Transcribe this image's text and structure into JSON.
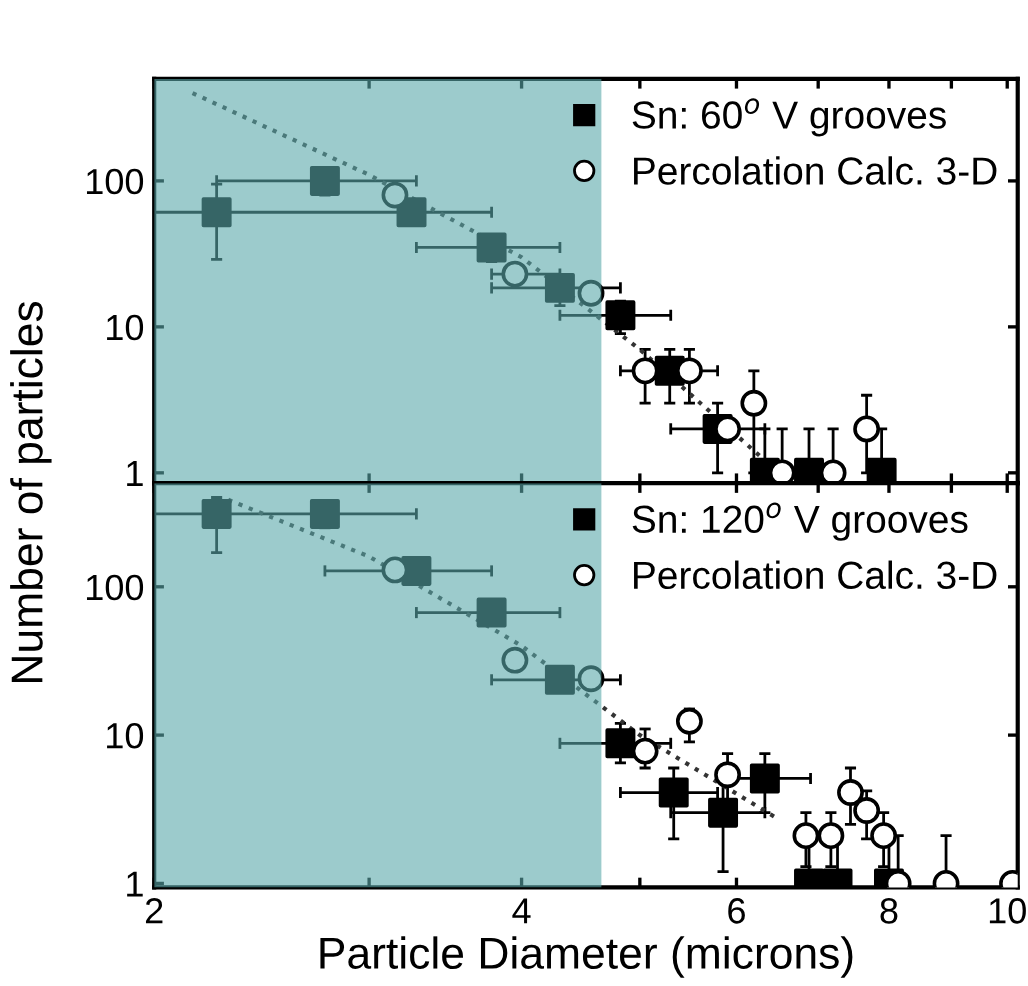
{
  "chart_data": [
    {
      "type": "scatter",
      "ylabel": "Number of particles",
      "log": "xy",
      "xlim": [
        2,
        10.2
      ],
      "ylim": [
        0.85,
        500
      ],
      "xticks": [
        2,
        {
          "value": 3,
          "label": null
        },
        4,
        {
          "value": 5,
          "label": null
        },
        6,
        {
          "value": 7,
          "label": null
        },
        8,
        {
          "value": 9,
          "label": null
        },
        10
      ],
      "yticks": [
        1,
        10,
        100
      ],
      "tick_labels": "y",
      "legend": "top right",
      "grid": false,
      "bands": [
        {
          "axis": "x",
          "from": 2,
          "to": 4.65,
          "color": "#5aa9aa"
        }
      ],
      "series": [
        {
          "name": "Sn: 60$^{o}$ V grooves",
          "color": "#000000",
          "marker": "square",
          "x": [
            2.25,
            2.76,
            3.25,
            3.78,
            4.3,
            4.82,
            5.29,
            5.79,
            6.33,
            6.88,
            7.89
          ],
          "values": [
            61,
            100,
            61,
            35,
            18.5,
            12,
            5,
            2,
            1,
            1,
            1
          ],
          "errors": [
            [
              29,
              95
            ],
            [
              80,
              120
            ],
            [
              50,
              72
            ],
            [
              28,
              42
            ],
            [
              14,
              22
            ],
            [
              9,
              15
            ],
            [
              3,
              7
            ],
            [
              1,
              3
            ],
            [
              1,
              2
            ],
            [
              1,
              2
            ],
            [
              1,
              2
            ]
          ],
          "xerrors": [
            [
              2,
              3.78
            ],
            [
              2.25,
              3.28
            ],
            null,
            [
              3.28,
              4.3
            ],
            [
              3.78,
              4.82
            ],
            [
              4.3,
              5.3
            ],
            [
              4.82,
              5.79
            ],
            [
              5.3,
              6.33
            ],
            null,
            null,
            null
          ]
        },
        {
          "name": "Percolation Calc. 3-D",
          "color": "#000000",
          "marker": "circle",
          "x": [
            3.15,
            3.95,
            4.56,
            5.05,
            5.49,
            5.9,
            6.2,
            6.54,
            7.2,
            7.67
          ],
          "values": [
            80,
            23,
            17,
            5,
            5,
            2,
            3,
            1,
            1,
            2
          ],
          "errors": [
            null,
            null,
            null,
            [
              3,
              7
            ],
            [
              3,
              7
            ],
            null,
            [
              1,
              5
            ],
            [
              1,
              2
            ],
            [
              1,
              2
            ],
            [
              1,
              3.4
            ]
          ],
          "xerrors": [
            null,
            [
              3.78,
              4.3
            ],
            null,
            null,
            null,
            null,
            null,
            null,
            null,
            null
          ]
        },
        {
          "type": "line",
          "color": "#333333",
          "line_style": "dotted",
          "marker": "none",
          "x": [
            2.15,
            3.0,
            4.0,
            5.0,
            6.5
          ],
          "values": [
            400,
            110,
            30,
            7,
            1
          ]
        }
      ]
    },
    {
      "type": "scatter",
      "xlabel": "Particle Diameter (microns)",
      "log": "xy",
      "xlim": [
        2,
        10.2
      ],
      "ylim": [
        0.94,
        500
      ],
      "xticks": [
        2,
        {
          "value": 3,
          "label": null
        },
        4,
        {
          "value": 5,
          "label": null
        },
        6,
        {
          "value": 7,
          "label": null
        },
        8,
        {
          "value": 9,
          "label": null
        },
        10
      ],
      "yticks": [
        1,
        10,
        100
      ],
      "legend": "top right",
      "grid": false,
      "bands": [
        {
          "axis": "x",
          "from": 2,
          "to": 4.65,
          "color": "#5aa9aa"
        }
      ],
      "series": [
        {
          "name": "Sn: 120$^{o}$ V grooves",
          "color": "#000000",
          "marker": "square",
          "x": [
            2.25,
            2.76,
            3.28,
            3.78,
            4.3,
            4.82,
            5.33,
            5.85,
            6.33,
            6.88,
            7.26,
            8.0
          ],
          "values": [
            310,
            310,
            128,
            67,
            23.6,
            8.8,
            4.1,
            3.0,
            5.1,
            1,
            1,
            1
          ],
          "errors": [
            [
              170,
              400
            ],
            [
              250,
              380
            ],
            [
              110,
              150
            ],
            null,
            null,
            [
              6.5,
              12
            ],
            [
              2,
              6
            ],
            [
              1.2,
              5
            ],
            [
              3,
              7.5
            ],
            [
              1,
              2.3
            ],
            [
              1,
              2.3
            ],
            [
              1,
              2.3
            ]
          ],
          "xerrors": [
            [
              2,
              3.28
            ],
            null,
            [
              2.76,
              3.78
            ],
            [
              3.28,
              4.3
            ],
            [
              3.78,
              4.82
            ],
            [
              4.3,
              5.3
            ],
            [
              4.82,
              5.79
            ],
            [
              5.3,
              6.33
            ],
            [
              5.85,
              6.9
            ],
            null,
            null,
            null
          ]
        },
        {
          "name": "Percolation Calc. 3-D",
          "color": "#000000",
          "marker": "circle",
          "x": [
            3.15,
            3.95,
            4.56,
            5.05,
            5.49,
            5.9,
            6.84,
            7.17,
            7.44,
            7.67,
            7.92,
            8.14,
            8.91,
            10.1
          ],
          "values": [
            130,
            32,
            24,
            7.8,
            12.4,
            5.4,
            2.1,
            2.1,
            4.1,
            3.1,
            2.1,
            1,
            1,
            1
          ],
          "errors": [
            null,
            null,
            null,
            [
              6,
              11
            ],
            [
              9,
              15
            ],
            [
              3.5,
              7.5
            ],
            [
              1.3,
              3
            ],
            [
              1.3,
              3
            ],
            [
              2.5,
              6
            ],
            [
              2,
              4.2
            ],
            [
              1.3,
              3
            ],
            [
              1,
              2.1
            ],
            [
              1,
              2.1
            ],
            null
          ]
        },
        {
          "type": "line",
          "color": "#333333",
          "line_style": "dotted",
          "marker": "none",
          "x": [
            2.3,
            3.0,
            4.0,
            5.0,
            6.5
          ],
          "values": [
            386,
            160,
            40,
            10,
            2.7
          ]
        }
      ]
    }
  ]
}
